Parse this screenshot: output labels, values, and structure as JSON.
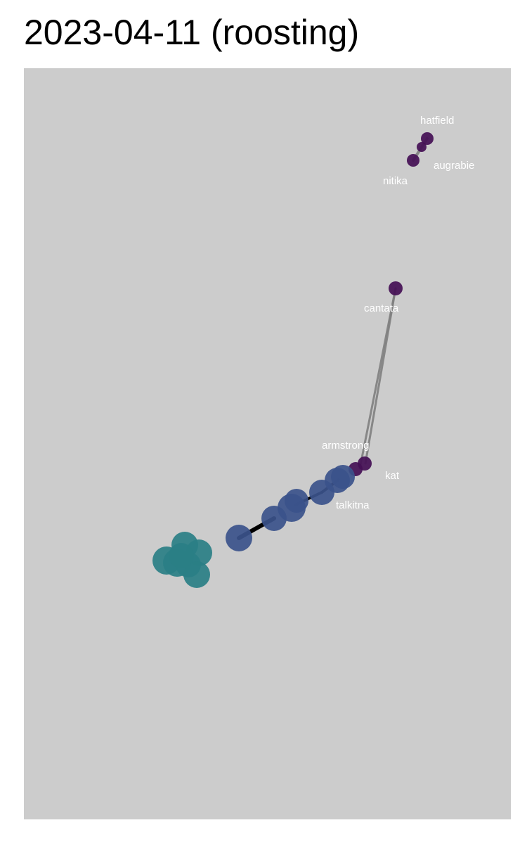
{
  "title": "2023-04-11 (roosting)",
  "colors": {
    "panel": "#cccccc",
    "edge_strong": "#000000",
    "edge_weak": "#808080",
    "group_purple": "#440f55",
    "group_blue": "#3b528b",
    "group_teal": "#2a7f86",
    "label_text": "#ffffff"
  },
  "labels": {
    "hatfield": "hatfield",
    "augrabie": "augrabie",
    "nitika": "nitika",
    "cantata": "cantata",
    "armstrong": "armstrong",
    "kat": "kat",
    "talkitna": "talkitna"
  }
}
